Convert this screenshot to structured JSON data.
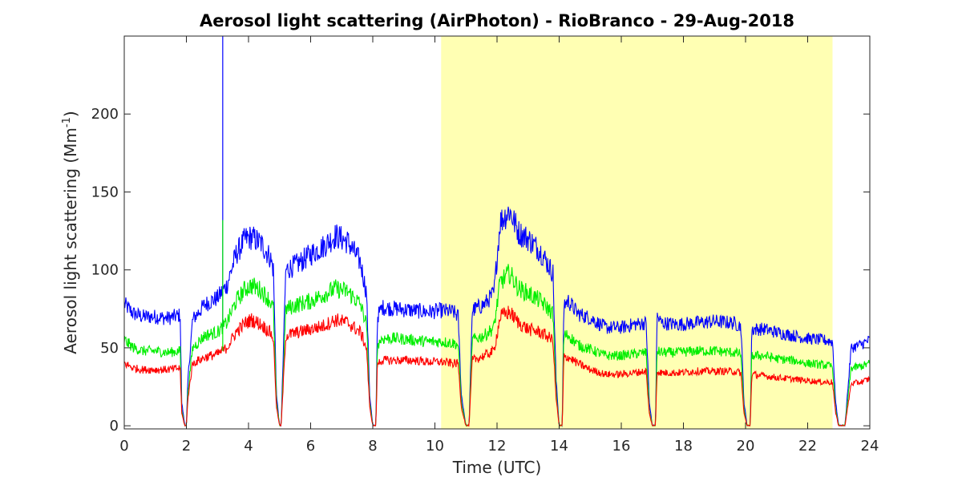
{
  "chart_data": {
    "type": "line",
    "title": "Aerosol light scattering (AirPhoton) - RioBranco - 29-Aug-2018",
    "xlabel": "Time (UTC)",
    "ylabel_main": "Aerosol light scattering (Mm",
    "ylabel_sup": "-1",
    "ylabel_close": ")",
    "xlim": [
      0,
      24
    ],
    "ylim": [
      -2,
      250
    ],
    "xticks": [
      "0",
      "2",
      "4",
      "6",
      "8",
      "10",
      "12",
      "14",
      "16",
      "18",
      "20",
      "22",
      "24"
    ],
    "yticks": [
      "0",
      "50",
      "100",
      "150",
      "200"
    ],
    "grid": false,
    "legend": "none",
    "shaded_interval": {
      "x_start": 10.2,
      "x_end": 22.8,
      "color": "#ffffb3"
    },
    "spikes": [
      {
        "series": "blue",
        "x": 3.17,
        "from": 62,
        "to": 250
      },
      {
        "series": "green",
        "x": 3.17,
        "from": 48,
        "to": 132
      }
    ],
    "series": [
      {
        "color": "#0000ff",
        "x": [
          0,
          0.3,
          0.6,
          1.0,
          1.4,
          1.8,
          1.85,
          1.95,
          2.0,
          2.05,
          2.2,
          2.6,
          3.0,
          3.3,
          3.6,
          3.9,
          4.1,
          4.4,
          4.7,
          4.8,
          4.9,
          5.0,
          5.05,
          5.2,
          5.6,
          6.0,
          6.4,
          6.8,
          7.2,
          7.6,
          7.8,
          7.9,
          8.0,
          8.1,
          8.15,
          8.3,
          8.8,
          9.3,
          9.8,
          10.2,
          10.6,
          10.75,
          10.85,
          11.0,
          11.1,
          11.2,
          11.6,
          11.9,
          12.1,
          12.4,
          12.7,
          13.0,
          13.4,
          13.8,
          13.9,
          14.0,
          14.1,
          14.15,
          14.3,
          14.6,
          15.0,
          15.5,
          16.0,
          16.4,
          16.8,
          16.9,
          17.0,
          17.1,
          17.15,
          17.3,
          17.8,
          18.4,
          19.0,
          19.6,
          19.85,
          19.95,
          20.05,
          20.15,
          20.2,
          20.6,
          21.0,
          21.5,
          22.0,
          22.5,
          22.8,
          22.9,
          23.0,
          23.1,
          23.2,
          23.4,
          23.7,
          24.0
        ],
        "y": [
          78,
          72,
          70,
          70,
          69,
          71,
          15,
          0,
          0,
          30,
          68,
          78,
          82,
          90,
          110,
          120,
          121,
          117,
          108,
          100,
          20,
          0,
          0,
          100,
          104,
          110,
          115,
          122,
          118,
          105,
          85,
          20,
          0,
          0,
          70,
          76,
          75,
          74,
          73,
          74,
          73,
          70,
          20,
          0,
          0,
          74,
          78,
          85,
          131,
          138,
          124,
          120,
          112,
          98,
          30,
          0,
          0,
          78,
          80,
          72,
          69,
          63,
          63,
          65,
          66,
          15,
          0,
          0,
          70,
          66,
          65,
          66,
          67,
          66,
          64,
          15,
          0,
          0,
          62,
          62,
          60,
          58,
          56,
          55,
          54,
          15,
          0,
          0,
          0,
          50,
          52,
          55
        ]
      },
      {
        "color": "#00ee00",
        "x": [
          0,
          0.3,
          0.6,
          1.0,
          1.4,
          1.8,
          1.85,
          1.95,
          2.0,
          2.05,
          2.2,
          2.6,
          3.0,
          3.3,
          3.6,
          3.9,
          4.1,
          4.4,
          4.7,
          4.8,
          4.9,
          5.0,
          5.05,
          5.2,
          5.6,
          6.0,
          6.4,
          6.8,
          7.2,
          7.6,
          7.8,
          7.9,
          8.0,
          8.1,
          8.15,
          8.3,
          8.8,
          9.3,
          9.8,
          10.2,
          10.6,
          10.75,
          10.85,
          11.0,
          11.1,
          11.2,
          11.6,
          11.9,
          12.1,
          12.4,
          12.7,
          13.0,
          13.4,
          13.8,
          13.9,
          14.0,
          14.1,
          14.15,
          14.3,
          14.6,
          15.0,
          15.5,
          16.0,
          16.4,
          16.8,
          16.9,
          17.0,
          17.1,
          17.15,
          17.3,
          17.8,
          18.4,
          19.0,
          19.6,
          19.85,
          19.95,
          20.05,
          20.15,
          20.2,
          20.6,
          21.0,
          21.5,
          22.0,
          22.5,
          22.8,
          22.9,
          23.0,
          23.1,
          23.2,
          23.4,
          23.7,
          24.0
        ],
        "y": [
          55,
          50,
          48,
          48,
          47,
          48,
          10,
          0,
          0,
          22,
          50,
          58,
          60,
          66,
          80,
          88,
          90,
          87,
          80,
          75,
          15,
          0,
          0,
          75,
          78,
          80,
          84,
          88,
          86,
          78,
          65,
          15,
          0,
          0,
          52,
          56,
          56,
          55,
          54,
          54,
          53,
          52,
          15,
          0,
          0,
          55,
          58,
          63,
          92,
          98,
          88,
          85,
          80,
          72,
          22,
          0,
          0,
          58,
          58,
          52,
          49,
          45,
          45,
          46,
          47,
          10,
          0,
          0,
          48,
          47,
          47,
          48,
          48,
          47,
          46,
          10,
          0,
          0,
          45,
          45,
          43,
          42,
          40,
          39,
          38,
          10,
          0,
          0,
          0,
          37,
          38,
          40
        ]
      },
      {
        "color": "#ff0000",
        "x": [
          0,
          0.3,
          0.6,
          1.0,
          1.4,
          1.8,
          1.85,
          1.95,
          2.0,
          2.05,
          2.2,
          2.6,
          3.0,
          3.3,
          3.6,
          3.9,
          4.1,
          4.4,
          4.7,
          4.8,
          4.9,
          5.0,
          5.05,
          5.2,
          5.6,
          6.0,
          6.4,
          6.8,
          7.2,
          7.6,
          7.8,
          7.9,
          8.0,
          8.1,
          8.15,
          8.3,
          8.8,
          9.3,
          9.8,
          10.2,
          10.6,
          10.75,
          10.85,
          11.0,
          11.1,
          11.2,
          11.6,
          11.9,
          12.1,
          12.4,
          12.7,
          13.0,
          13.4,
          13.8,
          13.9,
          14.0,
          14.1,
          14.15,
          14.3,
          14.6,
          15.0,
          15.5,
          16.0,
          16.4,
          16.8,
          16.9,
          17.0,
          17.1,
          17.15,
          17.3,
          17.8,
          18.4,
          19.0,
          19.6,
          19.85,
          19.95,
          20.05,
          20.15,
          20.2,
          20.6,
          21.0,
          21.5,
          22.0,
          22.5,
          22.8,
          22.9,
          23.0,
          23.1,
          23.2,
          23.4,
          23.7,
          24.0
        ],
        "y": [
          40,
          37,
          36,
          36,
          36,
          37,
          8,
          0,
          0,
          18,
          40,
          44,
          46,
          50,
          60,
          66,
          68,
          65,
          60,
          56,
          12,
          0,
          0,
          58,
          60,
          62,
          64,
          68,
          66,
          60,
          50,
          12,
          0,
          0,
          40,
          42,
          42,
          42,
          41,
          41,
          40,
          40,
          12,
          0,
          0,
          42,
          45,
          48,
          70,
          73,
          66,
          62,
          60,
          55,
          18,
          0,
          0,
          44,
          44,
          40,
          36,
          33,
          33,
          34,
          35,
          8,
          0,
          0,
          35,
          34,
          34,
          35,
          35,
          35,
          34,
          8,
          0,
          0,
          33,
          32,
          31,
          30,
          29,
          28,
          28,
          8,
          0,
          0,
          0,
          27,
          28,
          30
        ]
      }
    ]
  }
}
